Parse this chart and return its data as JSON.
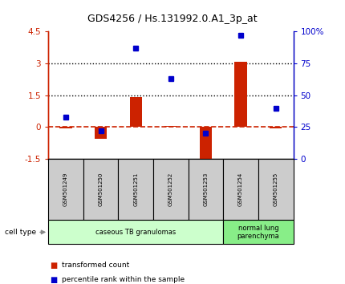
{
  "title": "GDS4256 / Hs.131992.0.A1_3p_at",
  "samples": [
    "GSM501249",
    "GSM501250",
    "GSM501251",
    "GSM501252",
    "GSM501253",
    "GSM501254",
    "GSM501255"
  ],
  "transformed_count": [
    -0.07,
    -0.55,
    1.4,
    0.07,
    -1.55,
    3.05,
    -0.07
  ],
  "percentile_rank": [
    33,
    22,
    87,
    63,
    20,
    97,
    40
  ],
  "ylim_left": [
    -1.5,
    4.5
  ],
  "ylim_right": [
    0,
    100
  ],
  "yticks_left": [
    -1.5,
    0,
    1.5,
    3,
    4.5
  ],
  "yticks_right": [
    0,
    25,
    50,
    75,
    100
  ],
  "ytick_labels_left": [
    "-1.5",
    "0",
    "1.5",
    "3",
    "4.5"
  ],
  "ytick_labels_right": [
    "0",
    "25",
    "50",
    "75",
    "100%"
  ],
  "hlines": [
    0,
    1.5,
    3.0
  ],
  "hline_styles": [
    "dashed",
    "dotted",
    "dotted"
  ],
  "hline_colors": [
    "#cc2200",
    "#000000",
    "#000000"
  ],
  "bar_color": "#cc2200",
  "dot_color": "#0000cc",
  "cell_type_groups": [
    {
      "label": "caseous TB granulomas",
      "samples": [
        0,
        1,
        2,
        3,
        4
      ],
      "color": "#ccffcc"
    },
    {
      "label": "normal lung\nparenchyma",
      "samples": [
        5,
        6
      ],
      "color": "#88ee88"
    }
  ],
  "legend_items": [
    {
      "color": "#cc2200",
      "label": "transformed count"
    },
    {
      "color": "#0000cc",
      "label": "percentile rank within the sample"
    }
  ],
  "cell_type_label": "cell type",
  "background_color": "#ffffff",
  "plot_bg_color": "#ffffff",
  "bar_width": 0.35,
  "sample_box_color": "#cccccc",
  "group_box_border": "#000000"
}
